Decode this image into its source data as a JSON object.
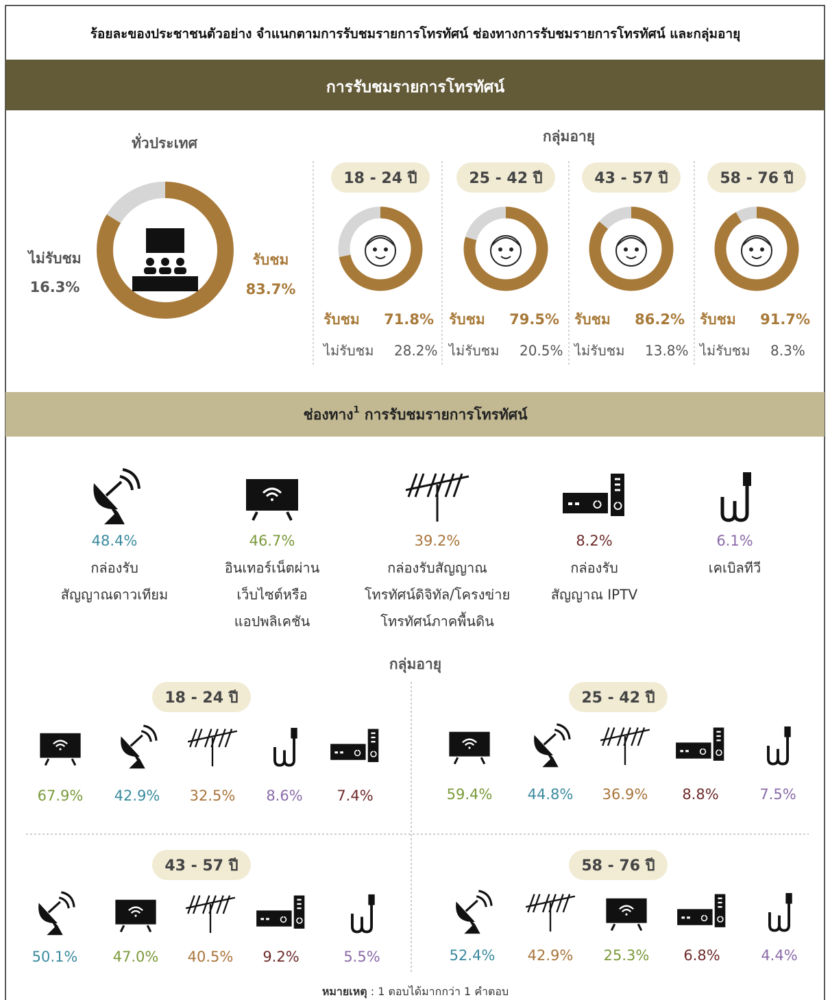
{
  "title": "ร้อยละของประชาชนตัวอย่าง จำแนกตามการรับชมรายการโทรทัศน์ ช่องทางการรับชมรายการโทรทัศน์ และกลุ่มอายุ",
  "section1": {
    "heading": "การรับชมรายการโทรทัศน์",
    "national": {
      "heading": "ทั่วประเทศ",
      "watch": {
        "label": "รับชม",
        "value": 83.7,
        "value_label": "83.7%"
      },
      "not_watch": {
        "label": "ไม่รับชม",
        "value": 16.3,
        "value_label": "16.3%"
      }
    },
    "age_heading": "กลุ่มอายุ",
    "groups": [
      {
        "age": "18 - 24 ปี",
        "watch": {
          "label": "รับชม",
          "value": 71.8,
          "value_label": "71.8%"
        },
        "not_watch": {
          "label": "ไม่รับชม",
          "value": 28.2,
          "value_label": "28.2%"
        }
      },
      {
        "age": "25 - 42 ปี",
        "watch": {
          "label": "รับชม",
          "value": 79.5,
          "value_label": "79.5%"
        },
        "not_watch": {
          "label": "ไม่รับชม",
          "value": 20.5,
          "value_label": "20.5%"
        }
      },
      {
        "age": "43 - 57 ปี",
        "watch": {
          "label": "รับชม",
          "value": 86.2,
          "value_label": "86.2%"
        },
        "not_watch": {
          "label": "ไม่รับชม",
          "value": 13.8,
          "value_label": "13.8%"
        }
      },
      {
        "age": "58 - 76 ปี",
        "watch": {
          "label": "รับชม",
          "value": 91.7,
          "value_label": "91.7%"
        },
        "not_watch": {
          "label": "ไม่รับชม",
          "value": 8.3,
          "value_label": "8.3%"
        }
      }
    ]
  },
  "section2": {
    "heading": {
      "main": "ช่องทาง",
      "sup": "1",
      "rest": " การรับชมรายการโทรทัศน์"
    },
    "channels": [
      {
        "icon": "satellite",
        "color": "#3a8a9e",
        "value": "48.4%",
        "label": [
          "กล่องรับ",
          "สัญญาณดาวเทียม"
        ]
      },
      {
        "icon": "tv",
        "color": "#7a9a3a",
        "value": "46.7%",
        "label": [
          "อินเทอร์เน็ตผ่าน",
          "เว็บไซต์หรือ",
          "แอปพลิเคชัน"
        ]
      },
      {
        "icon": "antenna",
        "color": "#a8743a",
        "value": "39.2%",
        "label": [
          "กล่องรับสัญญาณ",
          "โทรทัศน์ดิจิทัล/โครงข่าย",
          "โทรทัศน์ภาคพื้นดิน"
        ]
      },
      {
        "icon": "iptv",
        "color": "#6e2a2a",
        "value": "8.2%",
        "label": [
          "กล่องรับ",
          "สัญญาณ IPTV"
        ]
      },
      {
        "icon": "cable",
        "color": "#8a6aa8",
        "value": "6.1%",
        "label": [
          "เคเบิลทีวี"
        ]
      }
    ],
    "age_heading": "กลุ่มอายุ",
    "groups": [
      {
        "age": "18 - 24 ปี",
        "items": [
          {
            "channel": 1,
            "value": "67.9%"
          },
          {
            "channel": 0,
            "value": "42.9%"
          },
          {
            "channel": 2,
            "value": "32.5%"
          },
          {
            "channel": 4,
            "value": "8.6%"
          },
          {
            "channel": 3,
            "value": "7.4%"
          }
        ]
      },
      {
        "age": "25 - 42 ปี",
        "items": [
          {
            "channel": 1,
            "value": "59.4%"
          },
          {
            "channel": 0,
            "value": "44.8%"
          },
          {
            "channel": 2,
            "value": "36.9%"
          },
          {
            "channel": 3,
            "value": "8.8%"
          },
          {
            "channel": 4,
            "value": "7.5%"
          }
        ]
      },
      {
        "age": "43 - 57 ปี",
        "items": [
          {
            "channel": 0,
            "value": "50.1%"
          },
          {
            "channel": 1,
            "value": "47.0%"
          },
          {
            "channel": 2,
            "value": "40.5%"
          },
          {
            "channel": 3,
            "value": "9.2%"
          },
          {
            "channel": 4,
            "value": "5.5%"
          }
        ]
      },
      {
        "age": "58 - 76 ปี",
        "items": [
          {
            "channel": 0,
            "value": "52.4%"
          },
          {
            "channel": 2,
            "value": "42.9%"
          },
          {
            "channel": 1,
            "value": "25.3%"
          },
          {
            "channel": 3,
            "value": "6.8%"
          },
          {
            "channel": 4,
            "value": "4.4%"
          }
        ]
      }
    ]
  },
  "footnote": {
    "label": "หมายเหตุ",
    "text": " :  1 ตอบได้มากกว่า 1 คำตอบ"
  }
}
